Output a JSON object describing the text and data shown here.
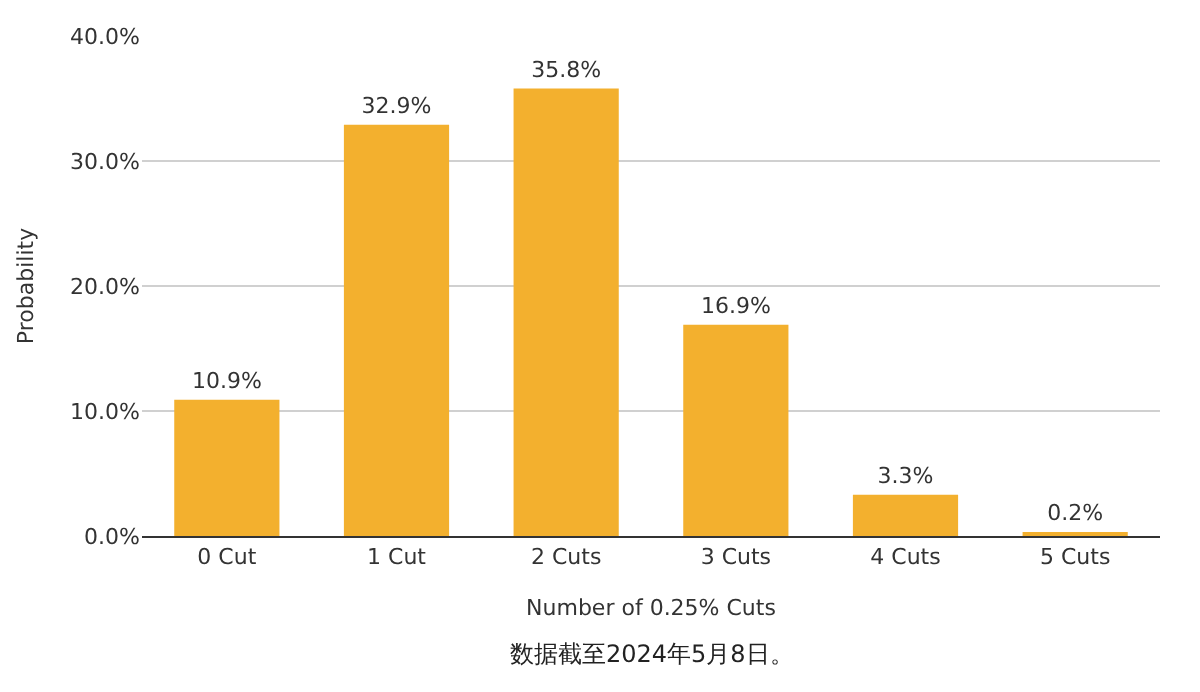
{
  "chart_data": {
    "type": "bar",
    "categories": [
      "0 Cut",
      "1 Cut",
      "2 Cuts",
      "3 Cuts",
      "4 Cuts",
      "5 Cuts"
    ],
    "values": [
      10.9,
      32.9,
      35.8,
      16.9,
      3.3,
      0.2
    ],
    "value_labels": [
      "10.9%",
      "32.9%",
      "35.8%",
      "16.9%",
      "3.3%",
      "0.2%"
    ],
    "color": "#f3b02e",
    "xlabel": "Number of 0.25% Cuts",
    "ylabel": "Probability",
    "ylim": [
      0,
      40
    ],
    "yticks": [
      {
        "value": 0,
        "label": "0.0%"
      },
      {
        "value": 10,
        "label": "10.0%"
      },
      {
        "value": 20,
        "label": "20.0%"
      },
      {
        "value": 30,
        "label": "30.0%"
      },
      {
        "value": 40,
        "label": "40.0%"
      }
    ],
    "grid": "y",
    "annotations": [
      "数据截至2024年5月8日。"
    ]
  }
}
